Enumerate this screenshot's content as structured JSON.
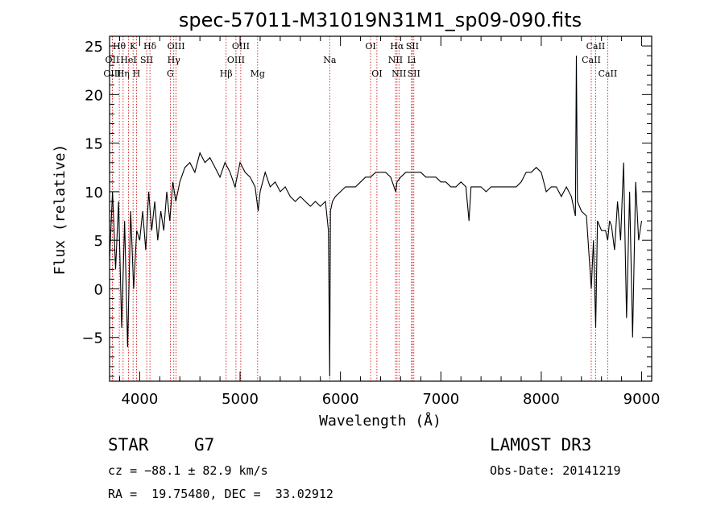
{
  "chart_data": {
    "type": "line",
    "title": "spec-57011-M31019N31M1_sp09-090.fits",
    "xlabel": "Wavelength (Å)",
    "ylabel": "Flux (relative)",
    "xlim": [
      3700,
      9100
    ],
    "ylim": [
      -9.5,
      26
    ],
    "xticks": [
      4000,
      5000,
      6000,
      7000,
      8000,
      9000
    ],
    "xtick_labels": [
      "4000",
      "5000",
      "6000",
      "7000",
      "8000",
      "9000"
    ],
    "yticks": [
      -5,
      0,
      5,
      10,
      15,
      20,
      25
    ],
    "ytick_labels": [
      "−5",
      "0",
      "5",
      "10",
      "15",
      "20",
      "25"
    ],
    "grid": false,
    "series": [
      {
        "name": "flux",
        "x": [
          3700,
          3730,
          3760,
          3790,
          3820,
          3850,
          3880,
          3910,
          3940,
          3970,
          4000,
          4030,
          4060,
          4090,
          4120,
          4150,
          4180,
          4210,
          4240,
          4270,
          4300,
          4330,
          4360,
          4400,
          4450,
          4500,
          4550,
          4600,
          4650,
          4700,
          4750,
          4800,
          4850,
          4900,
          4950,
          5000,
          5050,
          5100,
          5150,
          5180,
          5200,
          5250,
          5300,
          5350,
          5400,
          5450,
          5500,
          5550,
          5600,
          5650,
          5700,
          5750,
          5800,
          5850,
          5880,
          5893,
          5900,
          5920,
          5950,
          6000,
          6050,
          6100,
          6150,
          6200,
          6250,
          6300,
          6350,
          6400,
          6450,
          6500,
          6550,
          6563,
          6600,
          6650,
          6700,
          6750,
          6800,
          6850,
          6900,
          6950,
          7000,
          7050,
          7100,
          7150,
          7200,
          7250,
          7280,
          7300,
          7350,
          7400,
          7450,
          7500,
          7550,
          7600,
          7650,
          7700,
          7750,
          7800,
          7850,
          7900,
          7950,
          8000,
          8050,
          8100,
          8150,
          8200,
          8250,
          8300,
          8340,
          8350,
          8360,
          8400,
          8450,
          8498,
          8520,
          8542,
          8560,
          8600,
          8640,
          8662,
          8680,
          8700,
          8730,
          8760,
          8790,
          8820,
          8850,
          8880,
          8910,
          8940,
          8970,
          9000
        ],
        "y": [
          3,
          10,
          2,
          9,
          -4,
          7,
          -6,
          8,
          0,
          6,
          5,
          8,
          4,
          10,
          6,
          9,
          5,
          8,
          6,
          10,
          7,
          11,
          9,
          11,
          12.5,
          13,
          12,
          14,
          13,
          13.5,
          12.5,
          11.5,
          13,
          12,
          10.5,
          13,
          12,
          11.5,
          10.5,
          8,
          10,
          12,
          10.5,
          11,
          10,
          10.5,
          9.5,
          9,
          9.5,
          9,
          8.5,
          9,
          8.5,
          9,
          6,
          -9,
          8,
          9,
          9.5,
          10,
          10.5,
          10.5,
          10.5,
          11,
          11.5,
          11.5,
          12,
          12,
          12,
          11.5,
          10,
          11,
          11.5,
          12,
          12,
          12,
          12,
          11.5,
          11.5,
          11.5,
          11,
          11,
          10.5,
          10.5,
          11,
          10.5,
          7,
          10.5,
          10.5,
          10.5,
          10,
          10.5,
          10.5,
          10.5,
          10.5,
          10.5,
          10.5,
          11,
          12,
          12,
          12.5,
          12,
          10,
          10.5,
          10.5,
          9.5,
          10.5,
          9.5,
          7.5,
          24,
          9,
          8,
          7.5,
          0,
          5,
          -4,
          7,
          6,
          6,
          5,
          7,
          6.5,
          4,
          9,
          5,
          13,
          -3,
          10,
          -5,
          11,
          5,
          7
        ]
      }
    ],
    "spectral_lines": [
      {
        "label": "Hθ",
        "x": 3797,
        "row": 1
      },
      {
        "label": "OII",
        "x": 3727,
        "row": 2
      },
      {
        "label": "OIII",
        "x": 3727,
        "row": 3
      },
      {
        "label": "K",
        "x": 3934,
        "row": 1
      },
      {
        "label": "HeI",
        "x": 3889,
        "row": 2
      },
      {
        "label": "Hη",
        "x": 3835,
        "row": 3
      },
      {
        "label": "Hδ",
        "x": 4102,
        "row": 1
      },
      {
        "label": "SII",
        "x": 4070,
        "row": 2
      },
      {
        "label": "H",
        "x": 3968,
        "row": 3
      },
      {
        "label": "OIII",
        "x": 4363,
        "row": 1
      },
      {
        "label": "Hγ",
        "x": 4340,
        "row": 2
      },
      {
        "label": "G",
        "x": 4305,
        "row": 3
      },
      {
        "label": "OIII",
        "x": 5007,
        "row": 1
      },
      {
        "label": "OIII",
        "x": 4959,
        "row": 2
      },
      {
        "label": "Hβ",
        "x": 4861,
        "row": 3
      },
      {
        "label": "Mg",
        "x": 5175,
        "row": 3
      },
      {
        "label": "Na",
        "x": 5893,
        "row": 2
      },
      {
        "label": "OI",
        "x": 6300,
        "row": 1
      },
      {
        "label": "OI",
        "x": 6363,
        "row": 3
      },
      {
        "label": "Hα",
        "x": 6563,
        "row": 1
      },
      {
        "label": "NII",
        "x": 6548,
        "row": 2
      },
      {
        "label": "NII",
        "x": 6583,
        "row": 3
      },
      {
        "label": "SII",
        "x": 6716,
        "row": 1
      },
      {
        "label": "Li",
        "x": 6708,
        "row": 2
      },
      {
        "label": "SII",
        "x": 6731,
        "row": 3
      },
      {
        "label": "CaII",
        "x": 8542,
        "row": 1
      },
      {
        "label": "CaII",
        "x": 8498,
        "row": 2
      },
      {
        "label": "CaII",
        "x": 8662,
        "row": 3
      }
    ],
    "line_color": "#000000",
    "marker_color": "#cc0000"
  },
  "info": {
    "object_class": "STAR",
    "subclass": "G7",
    "survey": "LAMOST DR3",
    "cz": "cz = −88.1 ± 82.9 km/s",
    "obs_date": "Obs-Date: 20141219",
    "coords": "RA =  19.75480, DEC =  33.02912"
  }
}
